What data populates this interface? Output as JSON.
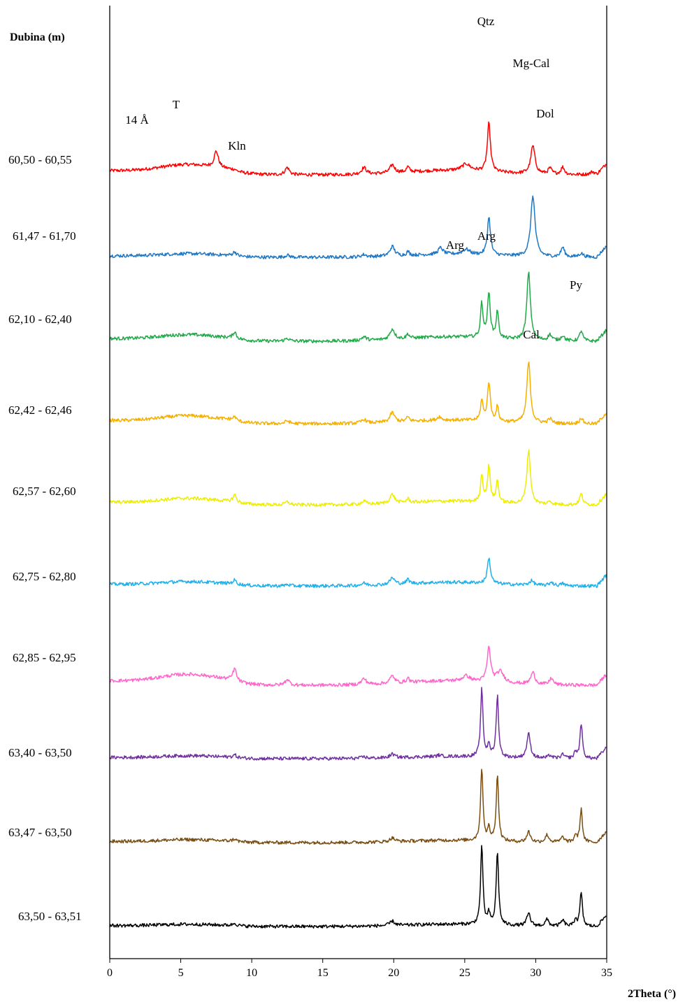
{
  "chart_data": {
    "type": "line",
    "title": "",
    "ylabel": "Dubina (m)",
    "xlabel": "2Theta (°)",
    "xlim": [
      0,
      35
    ],
    "xticks": [
      0,
      5,
      10,
      15,
      20,
      25,
      30,
      35
    ],
    "grid": false,
    "legend": "none",
    "series": [
      {
        "name": "60,50 - 60,55",
        "color": "#ff0000",
        "peaks": [
          [
            7.5,
            2.2,
            0.18
          ],
          [
            12.5,
            1.0,
            0.18
          ],
          [
            17.9,
            0.9,
            0.2
          ],
          [
            19.9,
            1.1,
            0.2
          ],
          [
            21.0,
            0.7,
            0.12
          ],
          [
            25.1,
            0.9,
            0.35
          ],
          [
            26.7,
            6.6,
            0.13
          ],
          [
            29.8,
            3.8,
            0.18
          ],
          [
            31.0,
            0.8,
            0.15
          ],
          [
            31.9,
            1.0,
            0.15
          ],
          [
            34.0,
            0.4,
            0.2
          ]
        ],
        "clay": 1.4,
        "bump": 0.6
      },
      {
        "name": "61,47 - 61,70",
        "color": "#1f77c4",
        "peaks": [
          [
            8.8,
            0.5,
            0.15
          ],
          [
            12.5,
            0.3,
            0.18
          ],
          [
            17.9,
            0.3,
            0.2
          ],
          [
            19.9,
            1.3,
            0.2
          ],
          [
            21.0,
            0.5,
            0.12
          ],
          [
            23.3,
            0.9,
            0.2
          ],
          [
            25.1,
            0.7,
            0.3
          ],
          [
            26.7,
            5.2,
            0.13
          ],
          [
            29.8,
            8.3,
            0.18
          ],
          [
            31.9,
            1.3,
            0.15
          ],
          [
            33.2,
            0.5,
            0.2
          ]
        ],
        "clay": 0.5,
        "bump": 0.4
      },
      {
        "name": "62,10 - 62,40",
        "color": "#22aa4a",
        "peaks": [
          [
            8.8,
            0.8,
            0.15
          ],
          [
            12.5,
            0.4,
            0.18
          ],
          [
            17.9,
            0.5,
            0.2
          ],
          [
            19.9,
            1.4,
            0.2
          ],
          [
            21.0,
            0.6,
            0.12
          ],
          [
            26.2,
            4.7,
            0.1
          ],
          [
            26.7,
            6.0,
            0.12
          ],
          [
            27.3,
            3.7,
            0.1
          ],
          [
            29.5,
            9.2,
            0.15
          ],
          [
            31.0,
            0.8,
            0.15
          ],
          [
            31.9,
            0.7,
            0.15
          ],
          [
            33.2,
            1.4,
            0.13
          ]
        ],
        "clay": 0.9,
        "bump": 0.6
      },
      {
        "name": "62,42 - 62,46",
        "color": "#f5b000",
        "peaks": [
          [
            8.8,
            0.4,
            0.15
          ],
          [
            12.5,
            0.4,
            0.18
          ],
          [
            17.9,
            0.5,
            0.2
          ],
          [
            19.9,
            1.3,
            0.2
          ],
          [
            21.0,
            0.6,
            0.12
          ],
          [
            23.2,
            0.5,
            0.15
          ],
          [
            26.2,
            2.8,
            0.1
          ],
          [
            26.7,
            5.3,
            0.12
          ],
          [
            27.3,
            2.0,
            0.1
          ],
          [
            29.5,
            8.3,
            0.15
          ],
          [
            31.0,
            0.6,
            0.15
          ],
          [
            33.2,
            0.8,
            0.13
          ]
        ],
        "clay": 1.1,
        "bump": 0.5
      },
      {
        "name": "62,57 - 62,60",
        "color": "#eeee00",
        "peaks": [
          [
            8.8,
            0.9,
            0.15
          ],
          [
            12.5,
            0.4,
            0.18
          ],
          [
            17.9,
            0.4,
            0.2
          ],
          [
            19.9,
            1.2,
            0.2
          ],
          [
            21.0,
            0.5,
            0.12
          ],
          [
            26.2,
            3.7,
            0.1
          ],
          [
            26.7,
            4.8,
            0.12
          ],
          [
            27.3,
            3.0,
            0.1
          ],
          [
            29.5,
            7.3,
            0.15
          ],
          [
            31.0,
            0.4,
            0.15
          ],
          [
            33.2,
            1.5,
            0.13
          ]
        ],
        "clay": 0.9,
        "bump": 0.5
      },
      {
        "name": "62,75 - 62,80",
        "color": "#22b0ea",
        "peaks": [
          [
            8.8,
            0.5,
            0.15
          ],
          [
            12.5,
            0.2,
            0.18
          ],
          [
            17.9,
            0.3,
            0.2
          ],
          [
            19.9,
            0.9,
            0.2
          ],
          [
            21.0,
            0.6,
            0.12
          ],
          [
            26.7,
            3.5,
            0.13
          ],
          [
            29.7,
            0.6,
            0.2
          ],
          [
            31.1,
            0.5,
            0.15
          ],
          [
            31.9,
            0.3,
            0.15
          ]
        ],
        "clay": 0.6,
        "bump": 0.5
      },
      {
        "name": "62,85 - 62,95",
        "color": "#ff66cc",
        "peaks": [
          [
            8.8,
            1.5,
            0.15
          ],
          [
            12.5,
            0.8,
            0.18
          ],
          [
            17.9,
            0.8,
            0.2
          ],
          [
            19.9,
            1.0,
            0.2
          ],
          [
            21.0,
            0.6,
            0.12
          ],
          [
            25.1,
            0.7,
            0.3
          ],
          [
            26.7,
            4.6,
            0.15
          ],
          [
            27.5,
            1.5,
            0.3
          ],
          [
            29.8,
            1.6,
            0.18
          ],
          [
            31.1,
            0.9,
            0.15
          ]
        ],
        "clay": 1.5,
        "bump": 0.6
      },
      {
        "name": "63,40 - 63,50",
        "color": "#7030a0",
        "peaks": [
          [
            8.8,
            0.3,
            0.15
          ],
          [
            17.9,
            0.2,
            0.2
          ],
          [
            19.9,
            0.5,
            0.2
          ],
          [
            23.2,
            0.2,
            0.15
          ],
          [
            26.2,
            9.2,
            0.1
          ],
          [
            26.7,
            1.7,
            0.1
          ],
          [
            27.3,
            8.4,
            0.1
          ],
          [
            29.5,
            3.3,
            0.15
          ],
          [
            31.0,
            0.4,
            0.15
          ],
          [
            31.9,
            0.5,
            0.15
          ],
          [
            32.8,
            0.9,
            0.1
          ],
          [
            33.2,
            4.8,
            0.1
          ]
        ],
        "clay": 0.4,
        "bump": 0.3
      },
      {
        "name": "63,47 - 63,50",
        "color": "#7a4e12",
        "peaks": [
          [
            8.8,
            0.3,
            0.15
          ],
          [
            19.9,
            0.5,
            0.2
          ],
          [
            26.2,
            9.9,
            0.1
          ],
          [
            26.7,
            1.6,
            0.1
          ],
          [
            27.3,
            9.0,
            0.1
          ],
          [
            29.5,
            1.4,
            0.15
          ],
          [
            30.8,
            1.0,
            0.15
          ],
          [
            31.9,
            0.7,
            0.15
          ],
          [
            32.8,
            1.0,
            0.1
          ],
          [
            33.2,
            4.5,
            0.1
          ]
        ],
        "clay": 0.4,
        "bump": 0.3
      },
      {
        "name": "63,50 - 63,51",
        "color": "#000000",
        "peaks": [
          [
            8.8,
            0.3,
            0.15
          ],
          [
            19.9,
            0.6,
            0.2
          ],
          [
            26.2,
            10.6,
            0.1
          ],
          [
            26.7,
            1.4,
            0.1
          ],
          [
            27.3,
            10.0,
            0.1
          ],
          [
            29.5,
            1.7,
            0.15
          ],
          [
            30.8,
            0.9,
            0.15
          ],
          [
            31.9,
            0.8,
            0.15
          ],
          [
            32.8,
            1.0,
            0.1
          ],
          [
            33.2,
            4.6,
            0.1
          ]
        ],
        "clay": 0.3,
        "bump": 0.3
      }
    ],
    "annotations": [
      {
        "text": "Qtz",
        "x": 26.7,
        "series": "60,50 - 60,55"
      },
      {
        "text": "Mg-Cal",
        "x": 29.8,
        "series": "61,47 - 61,70"
      },
      {
        "text": "Dol",
        "x": 31.0,
        "series": "60,50 - 60,55"
      },
      {
        "text": "14 Å",
        "x": 2.6,
        "series": "60,50 - 60,55"
      },
      {
        "text": "T",
        "x": 8.8,
        "series": "60,50 - 60,55"
      },
      {
        "text": "Kln",
        "x": 12.5,
        "series": "60,50 - 60,55"
      },
      {
        "text": "Arg",
        "x": 26.2,
        "series": "62,10 - 62,40"
      },
      {
        "text": "Arg",
        "x": 27.3,
        "series": "62,10 - 62,40"
      },
      {
        "text": "Py",
        "x": 33.2,
        "series": "62,10 - 62,40"
      },
      {
        "text": "Cal",
        "x": 29.5,
        "series": "62,42 - 62,46"
      }
    ]
  }
}
